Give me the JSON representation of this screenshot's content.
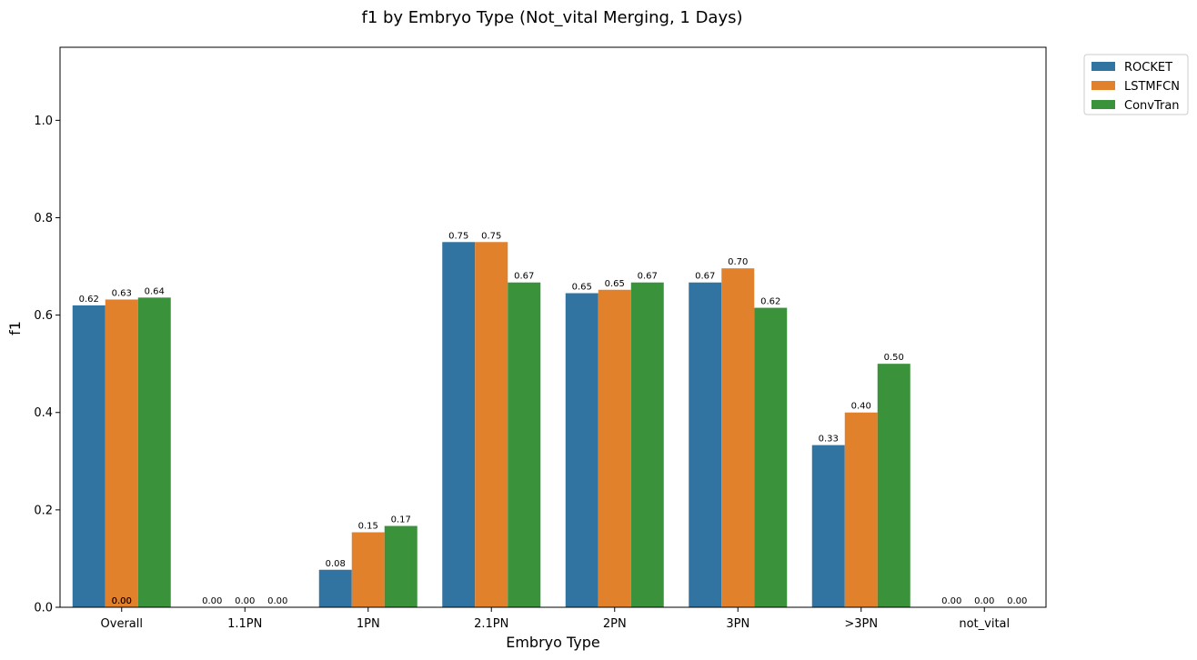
{
  "chart_data": {
    "type": "bar",
    "title": "f1 by Embryo Type (Not_vital Merging, 1 Days)",
    "xlabel": "Embryo Type",
    "ylabel": "f1",
    "categories": [
      "Overall",
      "1.1PN",
      "1PN",
      "2.1PN",
      "2PN",
      "3PN",
      ">3PN",
      "not_vital"
    ],
    "ylim": [
      0,
      1.15
    ],
    "yticks": [
      "0.0",
      "0.2",
      "0.4",
      "0.6",
      "0.8",
      "1.0"
    ],
    "series": [
      {
        "name": "ROCKET",
        "color": "#3274a1",
        "values": [
          0.62,
          0.0,
          0.077,
          0.75,
          0.645,
          0.667,
          0.333,
          0.0
        ],
        "labels": [
          "0.62",
          "0.00",
          "0.08",
          "0.75",
          "0.65",
          "0.67",
          "0.33",
          "0.00"
        ]
      },
      {
        "name": "LSTMFCN",
        "color": "#e1812c",
        "values": [
          0.632,
          0.0,
          0.154,
          0.75,
          0.652,
          0.696,
          0.4,
          0.0
        ],
        "labels": [
          "0.63",
          "0.00",
          "0.15",
          "0.75",
          "0.65",
          "0.70",
          "0.40",
          "0.00"
        ]
      },
      {
        "name": "ConvTran",
        "color": "#3a923a",
        "values": [
          0.636,
          0.0,
          0.167,
          0.667,
          0.667,
          0.615,
          0.5,
          0.0
        ],
        "labels": [
          "0.64",
          "0.00",
          "0.17",
          "0.67",
          "0.67",
          "0.62",
          "0.50",
          "0.00"
        ]
      }
    ],
    "extra_labels": [
      {
        "category_index": 0,
        "series_index": 1,
        "text": "0.00"
      },
      {
        "category_index": 0,
        "series_index": 1,
        "text": "0.00"
      }
    ],
    "grid": false,
    "legend_position": "outside-top-right"
  }
}
